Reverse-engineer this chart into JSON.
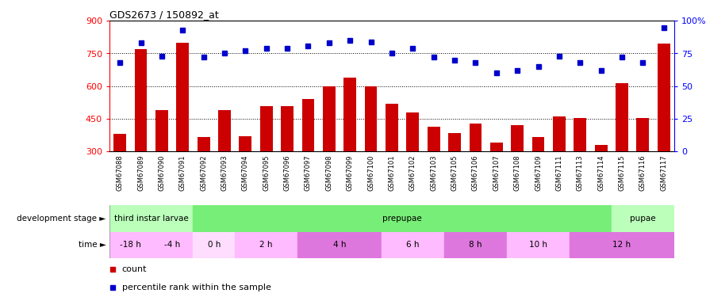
{
  "title": "GDS2673 / 150892_at",
  "samples": [
    "GSM67088",
    "GSM67089",
    "GSM67090",
    "GSM67091",
    "GSM67092",
    "GSM67093",
    "GSM67094",
    "GSM67095",
    "GSM67096",
    "GSM67097",
    "GSM67098",
    "GSM67099",
    "GSM67100",
    "GSM67101",
    "GSM67102",
    "GSM67103",
    "GSM67105",
    "GSM67106",
    "GSM67107",
    "GSM67108",
    "GSM67109",
    "GSM67111",
    "GSM67113",
    "GSM67114",
    "GSM67115",
    "GSM67116",
    "GSM67117"
  ],
  "bar_values": [
    380,
    770,
    490,
    800,
    365,
    490,
    370,
    510,
    510,
    540,
    600,
    640,
    600,
    520,
    480,
    415,
    385,
    430,
    340,
    420,
    365,
    460,
    455,
    330,
    615,
    455,
    795
  ],
  "dot_values": [
    68,
    83,
    73,
    93,
    72,
    75,
    77,
    79,
    79,
    81,
    83,
    85,
    84,
    75,
    79,
    72,
    70,
    68,
    60,
    62,
    65,
    73,
    68,
    62,
    72,
    68,
    95
  ],
  "ylim_left": [
    300,
    900
  ],
  "ylim_right": [
    0,
    100
  ],
  "yticks_left": [
    300,
    450,
    600,
    750,
    900
  ],
  "yticks_right": [
    0,
    25,
    50,
    75,
    100
  ],
  "bar_color": "#cc0000",
  "dot_color": "#0000cc",
  "background_color": "#ffffff",
  "dev_stages": [
    {
      "label": "third instar larvae",
      "start": 0,
      "end": 4,
      "color": "#bbffbb"
    },
    {
      "label": "prepupae",
      "start": 4,
      "end": 24,
      "color": "#77ee77"
    },
    {
      "label": "pupae",
      "start": 24,
      "end": 27,
      "color": "#bbffbb"
    }
  ],
  "time_periods": [
    {
      "label": "-18 h",
      "start": 0,
      "end": 2,
      "color": "#ffbbff"
    },
    {
      "label": "-4 h",
      "start": 2,
      "end": 4,
      "color": "#ffbbff"
    },
    {
      "label": "0 h",
      "start": 4,
      "end": 6,
      "color": "#ffddff"
    },
    {
      "label": "2 h",
      "start": 6,
      "end": 9,
      "color": "#ffbbff"
    },
    {
      "label": "4 h",
      "start": 9,
      "end": 13,
      "color": "#dd77dd"
    },
    {
      "label": "6 h",
      "start": 13,
      "end": 16,
      "color": "#ffbbff"
    },
    {
      "label": "8 h",
      "start": 16,
      "end": 19,
      "color": "#dd77dd"
    },
    {
      "label": "10 h",
      "start": 19,
      "end": 22,
      "color": "#ffbbff"
    },
    {
      "label": "12 h",
      "start": 22,
      "end": 27,
      "color": "#dd77dd"
    }
  ],
  "legend_items": [
    {
      "label": "count",
      "color": "#cc0000"
    },
    {
      "label": "percentile rank within the sample",
      "color": "#0000cc"
    }
  ]
}
